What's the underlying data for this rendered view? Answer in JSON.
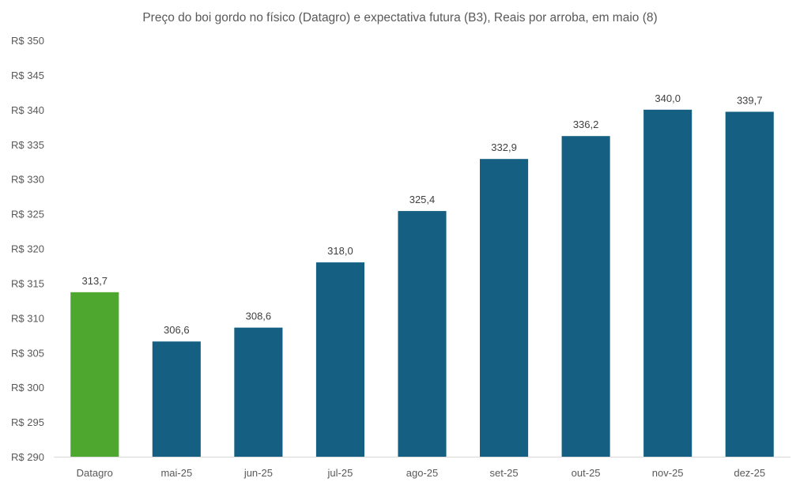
{
  "chart_data": {
    "type": "bar",
    "title": "Preço do boi gordo no físico (Datagro)  e expectativa futura (B3), Reais por arroba, em maio (8)",
    "xlabel": "",
    "ylabel": "",
    "categories": [
      "Datagro",
      "mai-25",
      "jun-25",
      "jul-25",
      "ago-25",
      "set-25",
      "out-25",
      "nov-25",
      "dez-25"
    ],
    "values": [
      313.7,
      306.6,
      308.6,
      318.0,
      325.4,
      332.9,
      336.2,
      340.0,
      339.7
    ],
    "value_labels": [
      "313,7",
      "306,6",
      "308,6",
      "318,0",
      "325,4",
      "332,9",
      "336,2",
      "340,0",
      "339,7"
    ],
    "bar_colors": [
      "#4ea72e",
      "#156082",
      "#156082",
      "#156082",
      "#156082",
      "#156082",
      "#156082",
      "#156082",
      "#156082"
    ],
    "ylim": [
      290,
      350
    ],
    "yticks": [
      290,
      295,
      300,
      305,
      310,
      315,
      320,
      325,
      330,
      335,
      340,
      345,
      350
    ],
    "ytick_labels": [
      "R$ 290",
      "R$ 295",
      "R$ 300",
      "R$ 305",
      "R$ 310",
      "R$ 315",
      "R$ 320",
      "R$ 325",
      "R$ 330",
      "R$ 335",
      "R$ 340",
      "R$ 345",
      "R$ 350"
    ],
    "grid": false,
    "legend": "none"
  }
}
